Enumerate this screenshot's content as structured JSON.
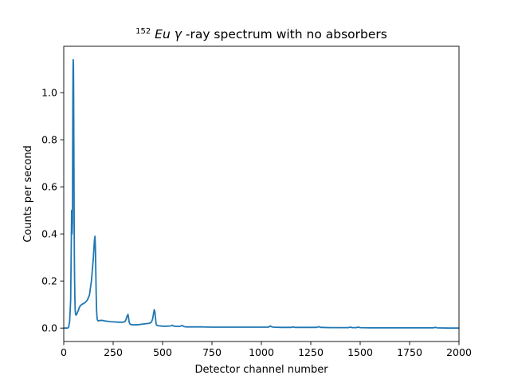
{
  "chart_data": {
    "type": "line",
    "title_sup": "152",
    "title_italic": "Eu",
    "title_space": " ",
    "title_gamma": "γ",
    "title_rest": "-ray spectrum with no absorbers",
    "xlabel": "Detector channel number",
    "ylabel": "Counts per second",
    "xlim": [
      0,
      2000
    ],
    "ylim": [
      -0.057,
      1.197
    ],
    "xticks": [
      0,
      250,
      500,
      750,
      1000,
      1250,
      1500,
      1750,
      2000
    ],
    "xtick_labels": [
      "0",
      "250",
      "500",
      "750",
      "1000",
      "1250",
      "1500",
      "1750",
      "2000"
    ],
    "yticks": [
      0.0,
      0.2,
      0.4,
      0.6,
      0.8,
      1.0
    ],
    "ytick_labels": [
      "0.0",
      "0.2",
      "0.4",
      "0.6",
      "0.8",
      "1.0"
    ],
    "grid": false,
    "legend": "none",
    "line_color": "#1f77b4",
    "series": [
      {
        "x": [
          0,
          10,
          20,
          25,
          30,
          35,
          40,
          42,
          44,
          45,
          46,
          47,
          48,
          49,
          50,
          51,
          52,
          53,
          54,
          55,
          56,
          57,
          58,
          60,
          62,
          64,
          66,
          68,
          70,
          75,
          80,
          90,
          100,
          110,
          120,
          130,
          140,
          145,
          150,
          155,
          158,
          160,
          162,
          164,
          166,
          168,
          170,
          175,
          180,
          190,
          200,
          210,
          220,
          240,
          260,
          280,
          300,
          310,
          315,
          320,
          325,
          328,
          331,
          335,
          340,
          350,
          370,
          390,
          410,
          430,
          440,
          445,
          450,
          455,
          458,
          461,
          464,
          467,
          470,
          480,
          500,
          520,
          540,
          545,
          550,
          555,
          560,
          580,
          590,
          595,
          600,
          605,
          610,
          620,
          650,
          700,
          750,
          800,
          850,
          900,
          950,
          1000,
          1035,
          1040,
          1045,
          1050,
          1060,
          1100,
          1150,
          1160,
          1170,
          1200,
          1250,
          1280,
          1290,
          1300,
          1350,
          1400,
          1440,
          1450,
          1460,
          1480,
          1490,
          1500,
          1550,
          1600,
          1700,
          1800,
          1870,
          1880,
          1890,
          1950,
          2000
        ],
        "y": [
          0.0,
          0.0,
          0.0,
          0.005,
          0.03,
          0.12,
          0.5,
          0.4,
          0.45,
          0.7,
          0.95,
          1.1,
          1.14,
          1.12,
          1.0,
          0.8,
          0.6,
          0.4,
          0.28,
          0.2,
          0.14,
          0.1,
          0.075,
          0.058,
          0.055,
          0.057,
          0.06,
          0.063,
          0.068,
          0.078,
          0.09,
          0.1,
          0.104,
          0.11,
          0.12,
          0.14,
          0.2,
          0.25,
          0.3,
          0.37,
          0.39,
          0.35,
          0.25,
          0.15,
          0.08,
          0.05,
          0.035,
          0.03,
          0.032,
          0.033,
          0.032,
          0.03,
          0.029,
          0.027,
          0.026,
          0.025,
          0.025,
          0.028,
          0.036,
          0.05,
          0.058,
          0.045,
          0.025,
          0.018,
          0.015,
          0.014,
          0.014,
          0.016,
          0.018,
          0.02,
          0.023,
          0.028,
          0.04,
          0.065,
          0.078,
          0.07,
          0.045,
          0.02,
          0.012,
          0.01,
          0.008,
          0.008,
          0.009,
          0.01,
          0.012,
          0.009,
          0.008,
          0.007,
          0.008,
          0.01,
          0.011,
          0.008,
          0.006,
          0.005,
          0.005,
          0.005,
          0.004,
          0.004,
          0.004,
          0.004,
          0.004,
          0.004,
          0.004,
          0.006,
          0.009,
          0.006,
          0.004,
          0.003,
          0.003,
          0.005,
          0.003,
          0.003,
          0.003,
          0.003,
          0.006,
          0.003,
          0.002,
          0.002,
          0.002,
          0.004,
          0.002,
          0.002,
          0.004,
          0.002,
          0.001,
          0.001,
          0.001,
          0.001,
          0.001,
          0.003,
          0.001,
          0.0,
          0.0
        ]
      }
    ]
  }
}
